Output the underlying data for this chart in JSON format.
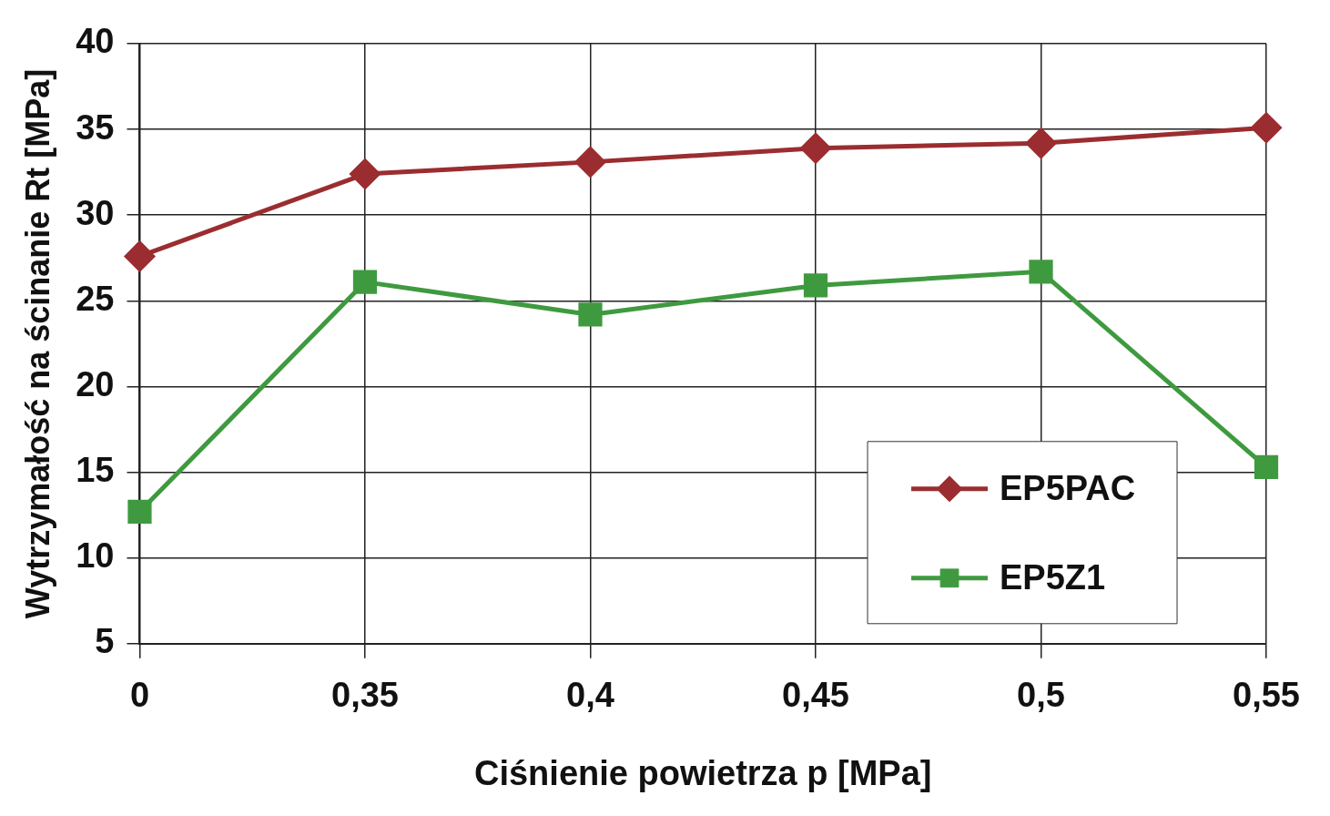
{
  "chart_data": {
    "type": "line",
    "xlabel": "Ciśnienie powietrza p [MPa]",
    "ylabel": "Wytrzymałość na ścinanie Rt [MPa]",
    "categories": [
      "0",
      "0,35",
      "0,4",
      "0,45",
      "0,5",
      "0,55"
    ],
    "series": [
      {
        "name": "EP5PAC",
        "color": "#9b2d30",
        "marker": "diamond",
        "values": [
          27.6,
          32.4,
          33.1,
          33.9,
          34.2,
          35.1
        ]
      },
      {
        "name": "EP5Z1",
        "color": "#3f9a3f",
        "marker": "square",
        "values": [
          12.7,
          26.1,
          24.2,
          25.9,
          26.7,
          15.3
        ]
      }
    ],
    "ylim": [
      5,
      40
    ],
    "yticks": [
      5,
      10,
      15,
      20,
      25,
      30,
      35,
      40
    ],
    "grid": true,
    "legend": "bottom right",
    "line_style": "solid"
  }
}
